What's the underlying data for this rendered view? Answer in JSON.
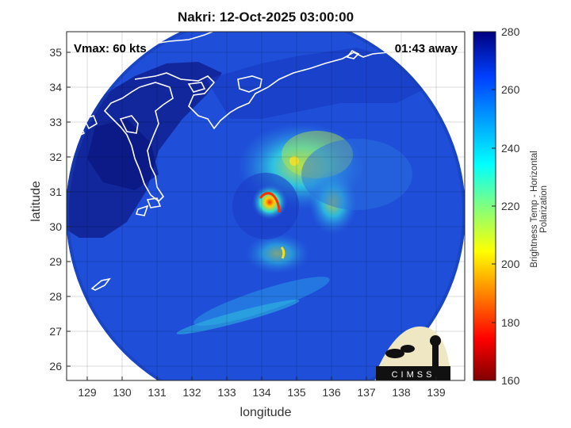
{
  "title": "Nakri: 12-Oct-2025 03:00:00",
  "overlay": {
    "vmax": "Vmax: 60 kts",
    "time_away": "01:43 away"
  },
  "axes": {
    "xlabel": "longitude",
    "ylabel": "latitude",
    "xticks": [
      "129",
      "130",
      "131",
      "132",
      "133",
      "134",
      "135",
      "136",
      "137",
      "138",
      "139"
    ],
    "yticks": [
      "26",
      "27",
      "28",
      "29",
      "30",
      "31",
      "32",
      "33",
      "34",
      "35"
    ],
    "xlim": [
      128.4,
      139.9
    ],
    "ylim": [
      25.6,
      35.6
    ],
    "grid": true
  },
  "colorbar": {
    "label": "Brightness Temp - Horizontal Polarization",
    "ticks": [
      "280",
      "260",
      "240",
      "220",
      "200",
      "180",
      "160"
    ],
    "range": [
      160,
      280
    ],
    "colormap": "jet"
  },
  "storm_center": {
    "lon": 134.2,
    "lat": 30.7
  },
  "logo": {
    "text": "CIMSS"
  },
  "colors": {
    "ocean": "#1f49d6",
    "land": "#0c1a8a",
    "coast": "#ffffff",
    "frame": "#000000"
  }
}
